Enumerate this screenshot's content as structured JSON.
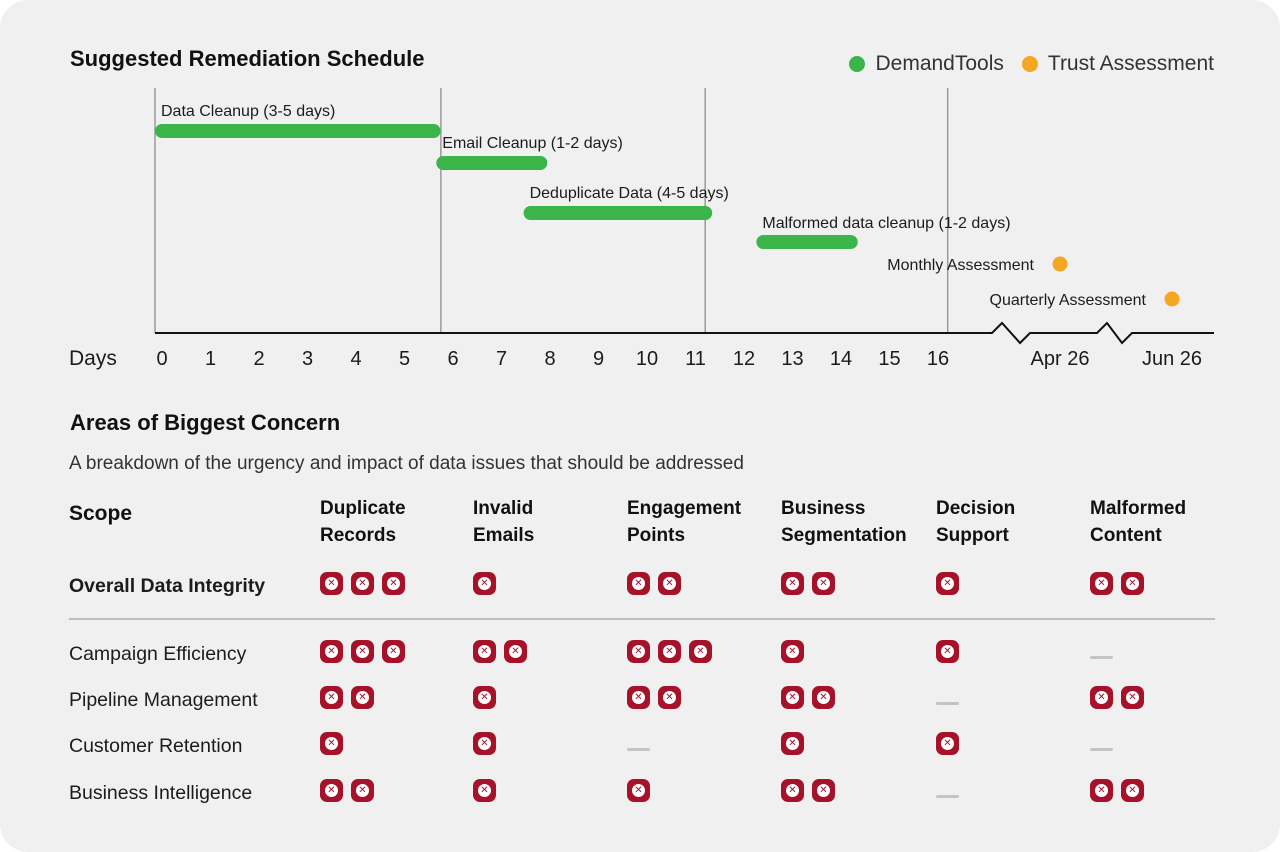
{
  "timeline": {
    "title": "Suggested Remediation Schedule",
    "legend": [
      {
        "label": "DemandTools",
        "color": "#3ab54a"
      },
      {
        "label": "Trust Assessment",
        "color": "#f5a623"
      }
    ],
    "axis_label": "Days",
    "ticks": [
      "0",
      "1",
      "2",
      "3",
      "4",
      "5",
      "6",
      "7",
      "8",
      "9",
      "10",
      "11",
      "12",
      "13",
      "14",
      "15",
      "16",
      "Apr 26",
      "Jun 26"
    ]
  },
  "chart_data": {
    "type": "gantt",
    "title": "Suggested Remediation Schedule",
    "xlabel": "Days",
    "x_ticks": [
      "0",
      "1",
      "2",
      "3",
      "4",
      "5",
      "6",
      "7",
      "8",
      "9",
      "10",
      "11",
      "12",
      "13",
      "14",
      "15",
      "16",
      "Apr 26",
      "Jun 26"
    ],
    "xlim": [
      0,
      16
    ],
    "series": [
      {
        "name": "DemandTools",
        "color": "#3ab54a"
      },
      {
        "name": "Trust Assessment",
        "color": "#f5a623"
      }
    ],
    "tasks": [
      {
        "label": "Data Cleanup (3-5 days)",
        "series": "DemandTools",
        "start": 0,
        "end": 5.6
      },
      {
        "label": "Email Cleanup (1-2 days)",
        "series": "DemandTools",
        "start": 5.8,
        "end": 7.8
      },
      {
        "label": "Deduplicate Data (4-5 days)",
        "series": "DemandTools",
        "start": 7.6,
        "end": 11.2
      },
      {
        "label": "Malformed data cleanup (1-2 days)",
        "series": "DemandTools",
        "start": 12.4,
        "end": 14.2
      }
    ],
    "milestones": [
      {
        "label": "Monthly Assessment",
        "series": "Trust Assessment",
        "at": "Apr 26"
      },
      {
        "label": "Quarterly Assessment",
        "series": "Trust Assessment",
        "at": "Jun 26"
      }
    ]
  },
  "concerns": {
    "title": "Areas of Biggest Concern",
    "subtitle": "A breakdown of the urgency and impact of data issues that should be addressed",
    "scope_label": "Scope",
    "columns": [
      "Duplicate\nRecords",
      "Invalid\nEmails",
      "Engagement\nPoints",
      "Business\nSegmentation",
      "Decision\nSupport",
      "Malformed\nContent"
    ],
    "overall": {
      "label": "Overall Data Integrity",
      "values": [
        3,
        1,
        2,
        2,
        1,
        2
      ]
    },
    "rows": [
      {
        "label": "Campaign Efficiency",
        "values": [
          3,
          2,
          3,
          1,
          1,
          0
        ]
      },
      {
        "label": "Pipeline Management",
        "values": [
          2,
          1,
          2,
          2,
          0,
          2
        ]
      },
      {
        "label": "Customer Retention",
        "values": [
          1,
          1,
          0,
          1,
          1,
          0
        ]
      },
      {
        "label": "Business Intelligence",
        "values": [
          2,
          1,
          1,
          2,
          0,
          2
        ]
      }
    ],
    "icon_name": "x-circle-icon",
    "icon_color": "#a5122a"
  }
}
